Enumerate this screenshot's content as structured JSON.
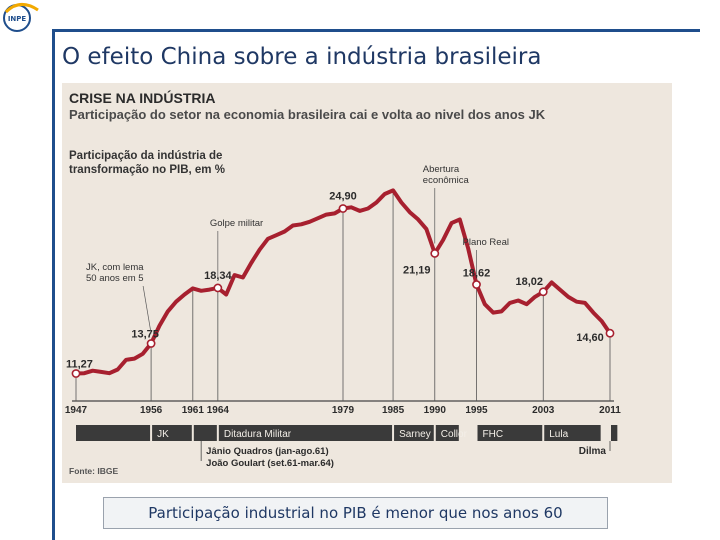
{
  "slide": {
    "title": "O efeito China sobre a indústria brasileira",
    "caption": "Participação industrial no PIB é menor que nos anos 60",
    "logo_text": "INPE"
  },
  "figure": {
    "headline": "CRISE NA INDÚSTRIA",
    "subheadline": "Participação do setor na economia brasileira cai e volta ao nivel dos anos JK",
    "chart_title_line1": "Participação da indústria de",
    "chart_title_line2": "transformação no PIB, em %",
    "source": "Fonte: IBGE"
  },
  "chart_data": {
    "type": "line",
    "title": "Participação da indústria de transformação no PIB, em %",
    "xlabel": "",
    "ylabel": "",
    "xlim": [
      1947,
      2011
    ],
    "ylim": [
      9,
      28
    ],
    "grid": false,
    "series_color": "#a7202f",
    "series": [
      {
        "x": [
          1947,
          1948,
          1949,
          1950,
          1951,
          1952,
          1953,
          1954,
          1955,
          1956,
          1957,
          1958,
          1959,
          1960,
          1961,
          1962,
          1963,
          1964,
          1965,
          1966,
          1967,
          1968,
          1969,
          1970,
          1971,
          1972,
          1973,
          1974,
          1975,
          1976,
          1977,
          1978,
          1979,
          1980,
          1981,
          1982,
          1983,
          1984,
          1985,
          1986,
          1987,
          1988,
          1989,
          1990,
          1991,
          1992,
          1993,
          1994,
          1995,
          1996,
          1997,
          1998,
          1999,
          2000,
          2001,
          2002,
          2003,
          2004,
          2005,
          2006,
          2007,
          2008,
          2009,
          2010,
          2011
        ],
        "y": [
          11.27,
          11.3,
          11.5,
          11.4,
          11.3,
          11.6,
          12.4,
          12.5,
          12.9,
          13.75,
          15.2,
          16.4,
          17.2,
          17.8,
          18.3,
          18.1,
          18.2,
          18.34,
          17.8,
          19.4,
          19.2,
          20.4,
          21.5,
          22.4,
          22.7,
          23.0,
          23.5,
          23.6,
          23.8,
          24.1,
          24.4,
          24.5,
          24.9,
          25.0,
          24.7,
          24.9,
          25.4,
          26.1,
          26.4,
          25.4,
          24.6,
          24.0,
          23.2,
          21.19,
          22.3,
          23.7,
          24.0,
          21.6,
          18.62,
          17.0,
          16.3,
          16.4,
          17.1,
          17.3,
          17.0,
          17.6,
          18.02,
          18.8,
          18.2,
          17.6,
          17.2,
          17.1,
          16.3,
          15.6,
          14.6
        ]
      }
    ],
    "labeled_points": [
      {
        "x": 1947,
        "y": 11.27,
        "label": "11,27"
      },
      {
        "x": 1956,
        "y": 13.75,
        "label": "13,75"
      },
      {
        "x": 1964,
        "y": 18.34,
        "label": "18,34"
      },
      {
        "x": 1979,
        "y": 24.9,
        "label": "24,90"
      },
      {
        "x": 1990,
        "y": 21.19,
        "label": "21,19"
      },
      {
        "x": 1995,
        "y": 18.62,
        "label": "18,62"
      },
      {
        "x": 2003,
        "y": 18.02,
        "label": "18,02"
      },
      {
        "x": 2011,
        "y": 14.6,
        "label": "14,60"
      }
    ],
    "annotations": [
      {
        "x": 1956,
        "y": 13.75,
        "lines": [
          "JK, com lema",
          "50 anos em 5"
        ]
      },
      {
        "x": 1964,
        "y": 18.34,
        "lines": [
          "Golpe militar"
        ]
      },
      {
        "x": 1990,
        "y": 21.19,
        "lines": [
          "Abertura",
          "econômica"
        ]
      },
      {
        "x": 1995,
        "y": 18.62,
        "lines": [
          "Plano Real"
        ]
      }
    ],
    "x_ticks": [
      {
        "value": 1947,
        "label": "1947"
      },
      {
        "value": 1956,
        "label": "1956"
      },
      {
        "value": 1961,
        "label": "1961"
      },
      {
        "value": 1964,
        "label": "1964"
      },
      {
        "value": 1979,
        "label": "1979"
      },
      {
        "value": 1985,
        "label": "1985"
      },
      {
        "value": 1990,
        "label": "1990"
      },
      {
        "value": 1995,
        "label": "1995"
      },
      {
        "value": 2003,
        "label": "2003"
      },
      {
        "value": 2011,
        "label": "2011"
      }
    ],
    "periods": [
      {
        "label": "JK",
        "start": 1956,
        "end": 1961
      },
      {
        "label": "",
        "start": 1961,
        "end": 1964
      },
      {
        "label": "Ditadura Militar",
        "start": 1964,
        "end": 1985
      },
      {
        "label": "Sarney",
        "start": 1985,
        "end": 1990
      },
      {
        "label": "Collor",
        "start": 1990,
        "end": 1993
      },
      {
        "label": "FHC",
        "start": 1995,
        "end": 2003
      },
      {
        "label": "Lula",
        "start": 2003,
        "end": 2010
      },
      {
        "label": "",
        "start": 2011,
        "end": 2012
      }
    ],
    "period_notes": {
      "dilma": "Dilma",
      "janio": "Jânio Quadros (jan-ago.61)",
      "goulart": "João Goulart (set.61-mar.64)"
    }
  }
}
